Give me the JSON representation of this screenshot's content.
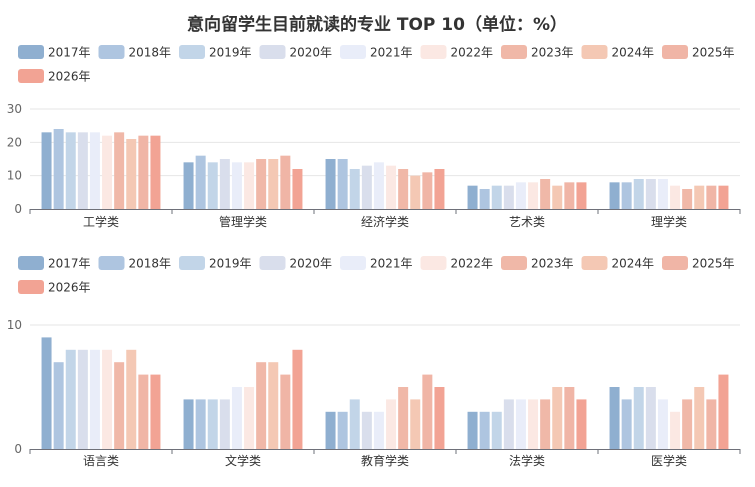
{
  "title": "意向留学生目前就读的专业 TOP 10（单位：%）",
  "legend": [
    "2017年",
    "2018年",
    "2019年",
    "2020年",
    "2021年",
    "2022年",
    "2023年",
    "2024年",
    "2025年",
    "2026年"
  ],
  "colors": [
    "#8fafd0",
    "#aec5e0",
    "#c2d5e8",
    "#d9deec",
    "#e9edf9",
    "#fbe8e3",
    "#f0b8a8",
    "#f4c8b4",
    "#f0b5a6",
    "#f2a394"
  ],
  "chart_data": [
    {
      "type": "bar",
      "categories": [
        "工学类",
        "管理学类",
        "经济学类",
        "艺术类",
        "理学类"
      ],
      "ylim": [
        0,
        30
      ],
      "yticks": [
        0,
        10,
        20,
        30
      ],
      "series": [
        {
          "name": "2017年",
          "values": [
            23,
            14,
            15,
            7,
            8
          ]
        },
        {
          "name": "2018年",
          "values": [
            24,
            16,
            15,
            6,
            8
          ]
        },
        {
          "name": "2019年",
          "values": [
            23,
            14,
            12,
            7,
            9
          ]
        },
        {
          "name": "2020年",
          "values": [
            23,
            15,
            13,
            7,
            9
          ]
        },
        {
          "name": "2021年",
          "values": [
            23,
            14,
            14,
            8,
            9
          ]
        },
        {
          "name": "2022年",
          "values": [
            22,
            14,
            13,
            8,
            7
          ]
        },
        {
          "name": "2023年",
          "values": [
            23,
            15,
            12,
            9,
            6
          ]
        },
        {
          "name": "2024年",
          "values": [
            21,
            15,
            10,
            7,
            7
          ]
        },
        {
          "name": "2025年",
          "values": [
            22,
            16,
            11,
            8,
            7
          ]
        },
        {
          "name": "2026年",
          "values": [
            22,
            12,
            12,
            8,
            7
          ]
        }
      ]
    },
    {
      "type": "bar",
      "categories": [
        "语言类",
        "文学类",
        "教育学类",
        "法学类",
        "医学类"
      ],
      "ylim": [
        0,
        10
      ],
      "yticks": [
        0,
        10
      ],
      "series": [
        {
          "name": "2017年",
          "values": [
            9,
            4,
            3,
            3,
            5
          ]
        },
        {
          "name": "2018年",
          "values": [
            7,
            4,
            3,
            3,
            4
          ]
        },
        {
          "name": "2019年",
          "values": [
            8,
            4,
            4,
            3,
            5
          ]
        },
        {
          "name": "2020年",
          "values": [
            8,
            4,
            3,
            4,
            5
          ]
        },
        {
          "name": "2021年",
          "values": [
            8,
            5,
            3,
            4,
            4
          ]
        },
        {
          "name": "2022年",
          "values": [
            8,
            5,
            4,
            4,
            3
          ]
        },
        {
          "name": "2023年",
          "values": [
            7,
            7,
            5,
            4,
            4
          ]
        },
        {
          "name": "2024年",
          "values": [
            8,
            7,
            4,
            5,
            5
          ]
        },
        {
          "name": "2025年",
          "values": [
            6,
            6,
            6,
            5,
            4
          ]
        },
        {
          "name": "2026年",
          "values": [
            6,
            8,
            5,
            4,
            6
          ]
        }
      ]
    }
  ]
}
